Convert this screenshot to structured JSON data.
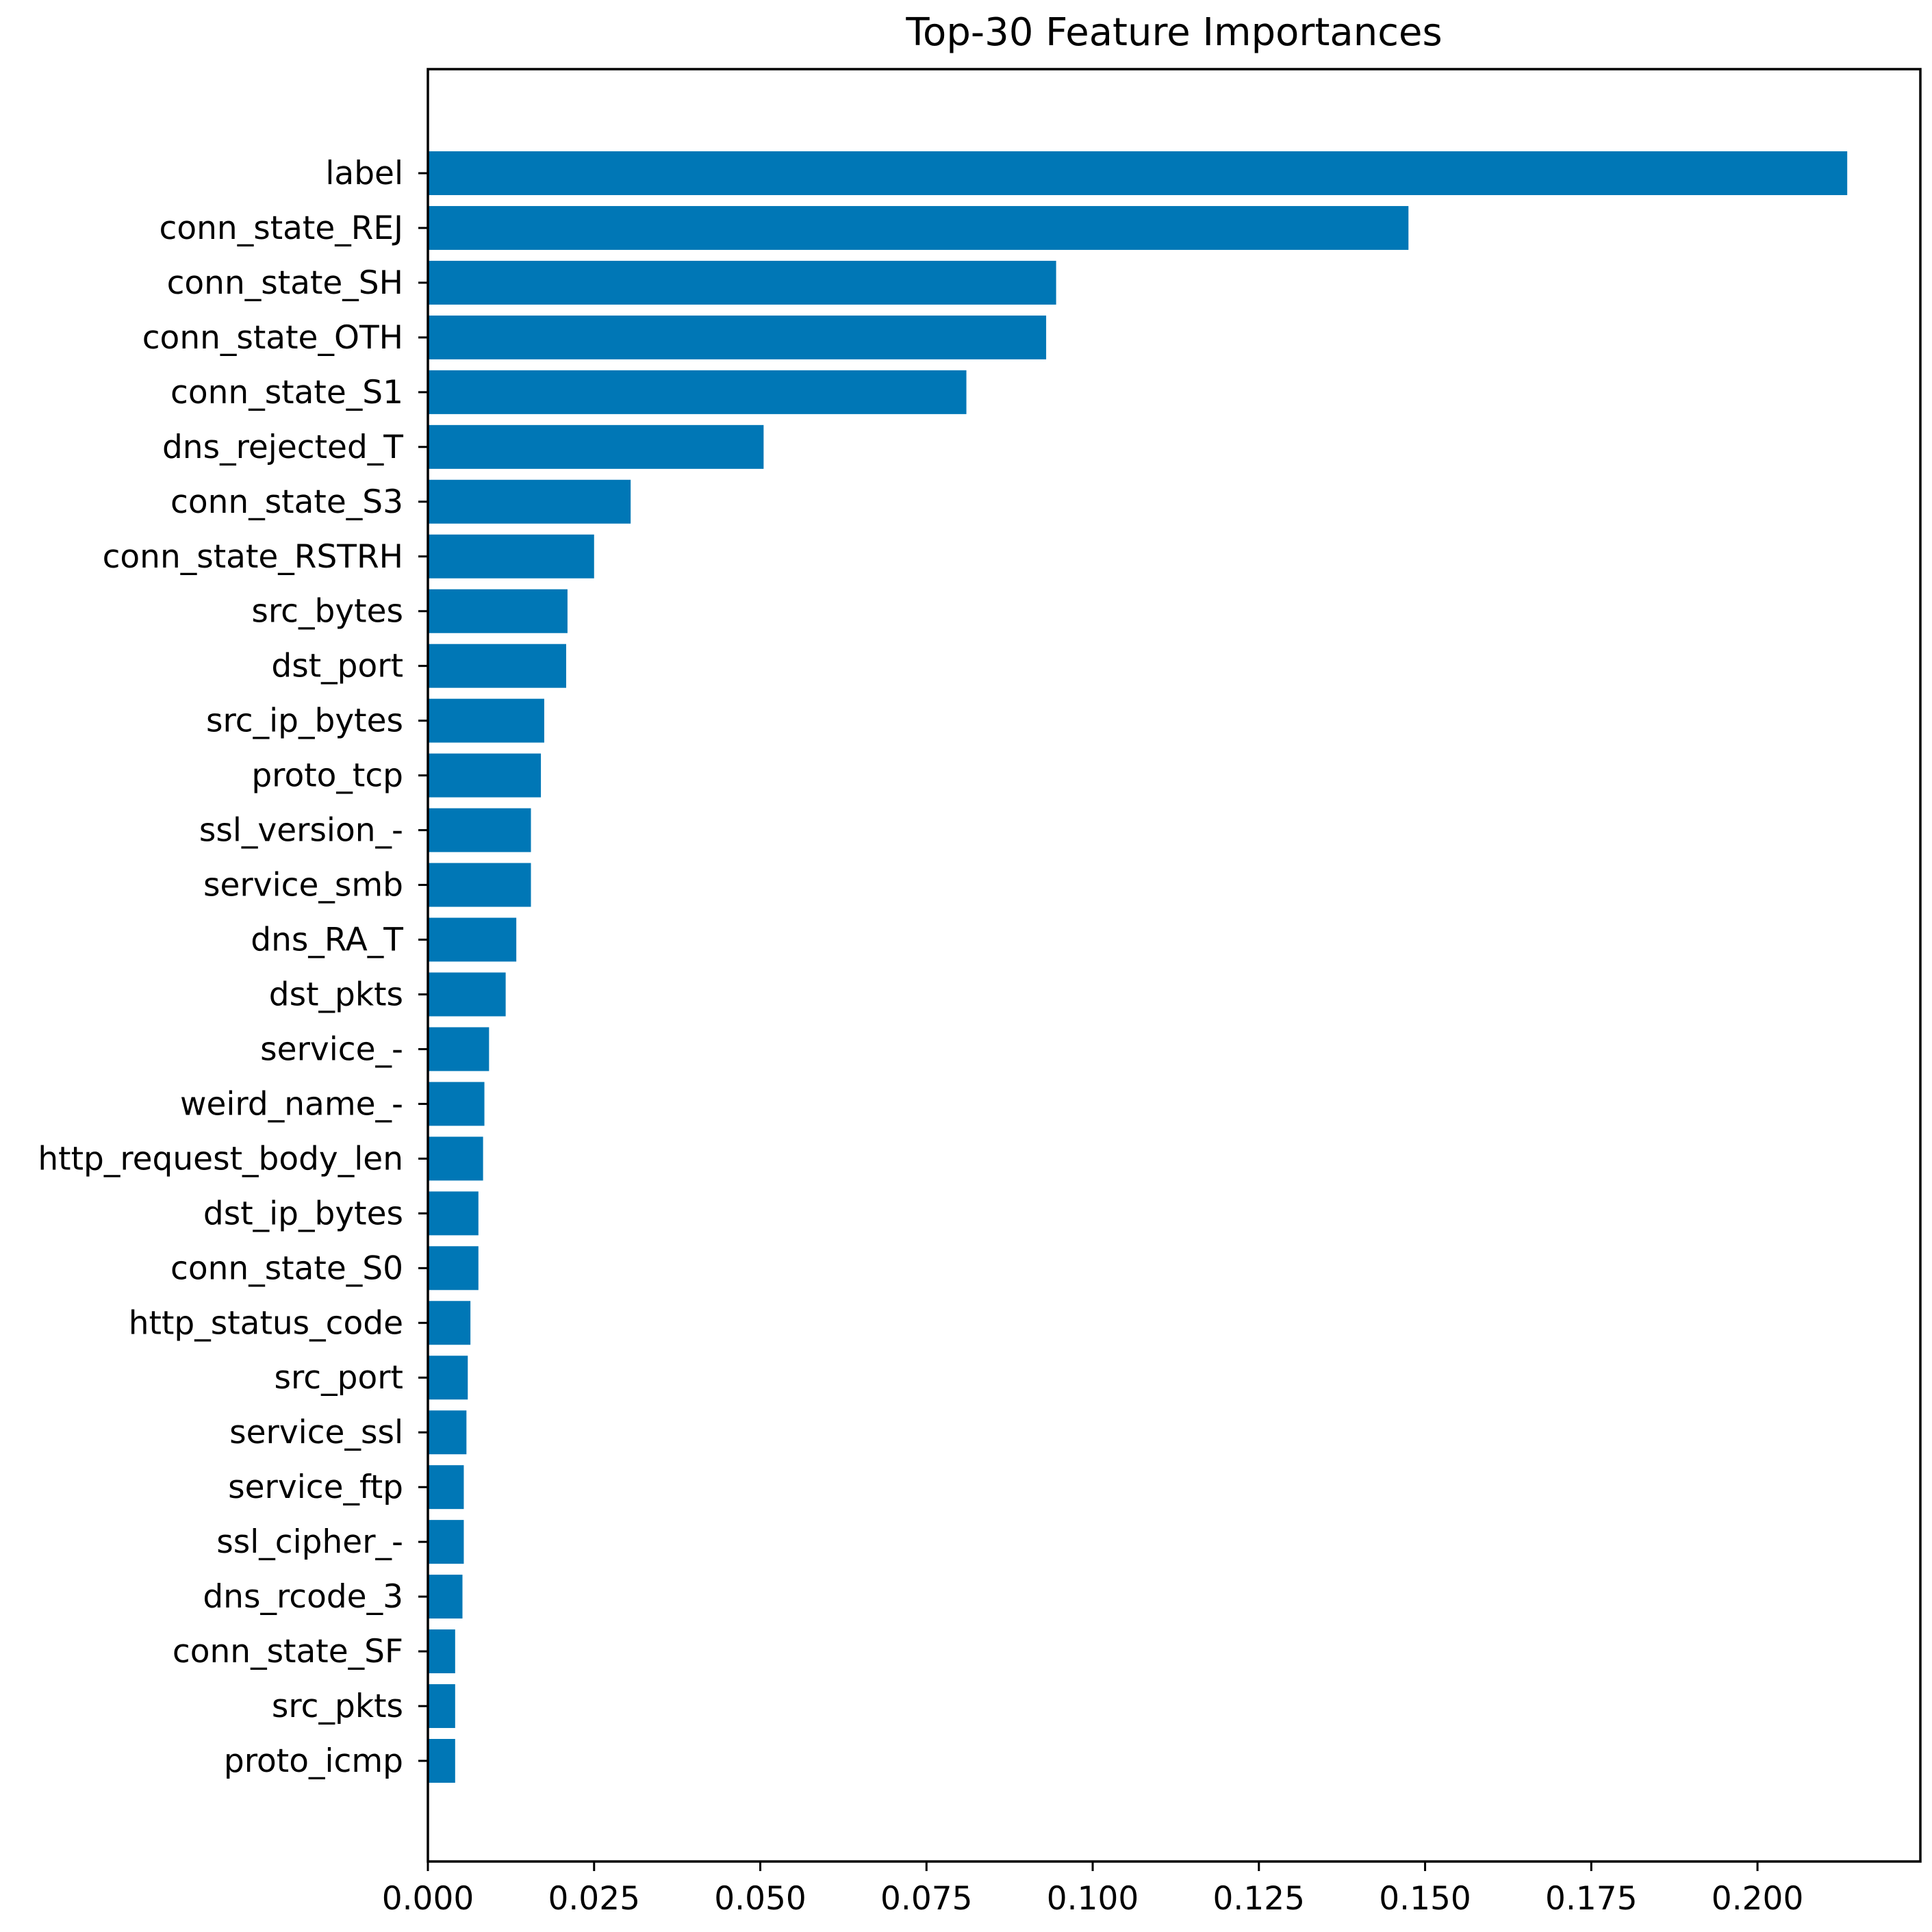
{
  "chart_data": {
    "type": "bar",
    "orientation": "horizontal",
    "title": "Top-30 Feature Importances",
    "xlabel": "",
    "ylabel": "",
    "xlim": [
      0.0,
      0.2245
    ],
    "xticks": [
      "0.000",
      "0.025",
      "0.050",
      "0.075",
      "0.100",
      "0.125",
      "0.150",
      "0.175",
      "0.200"
    ],
    "xtick_values": [
      0.0,
      0.025,
      0.05,
      0.075,
      0.1,
      0.125,
      0.15,
      0.175,
      0.2
    ],
    "grid": false,
    "bar_color": "#0077b6",
    "categories": [
      "label",
      "conn_state_REJ",
      "conn_state_SH",
      "conn_state_OTH",
      "conn_state_S1",
      "dns_rejected_T",
      "conn_state_S3",
      "conn_state_RSTRH",
      "src_bytes",
      "dst_port",
      "src_ip_bytes",
      "proto_tcp",
      "ssl_version_-",
      "service_smb",
      "dns_RA_T",
      "dst_pkts",
      "service_-",
      "weird_name_-",
      "http_request_body_len",
      "dst_ip_bytes",
      "conn_state_S0",
      "http_status_code",
      "src_port",
      "service_ssl",
      "service_ftp",
      "ssl_cipher_-",
      "dns_rcode_3",
      "conn_state_SF",
      "src_pkts",
      "proto_icmp"
    ],
    "values": [
      0.2135,
      0.1475,
      0.0945,
      0.093,
      0.081,
      0.0505,
      0.0305,
      0.025,
      0.021,
      0.0208,
      0.0175,
      0.017,
      0.0155,
      0.0155,
      0.0133,
      0.0117,
      0.0092,
      0.0085,
      0.0083,
      0.0076,
      0.0076,
      0.0064,
      0.006,
      0.0058,
      0.0054,
      0.0054,
      0.0052,
      0.0041,
      0.0041,
      0.0041
    ]
  }
}
